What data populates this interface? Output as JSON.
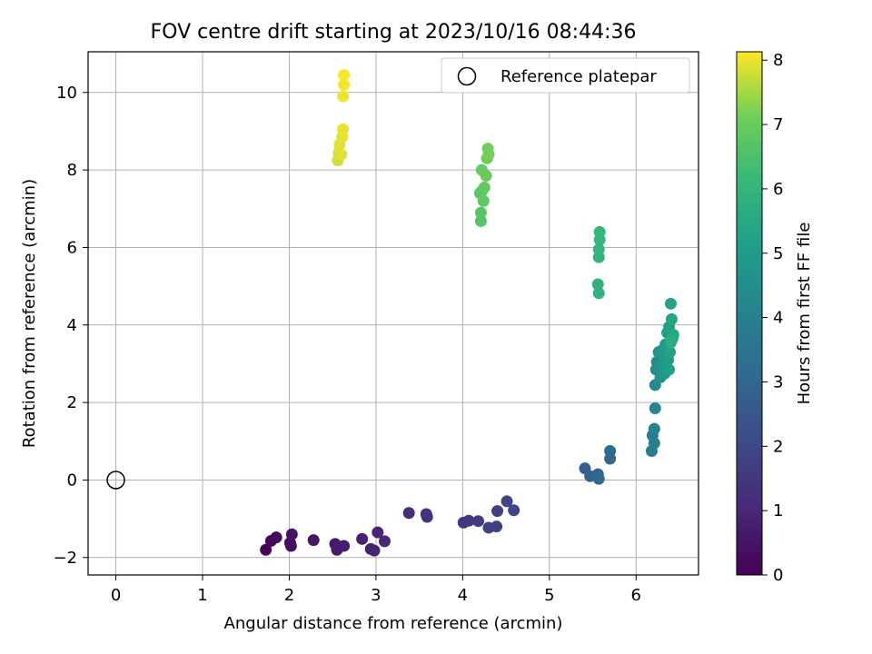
{
  "chart_data": {
    "type": "scatter",
    "title": "FOV centre drift starting at 2023/10/16 08:44:36",
    "xlabel": "Angular distance from reference (arcmin)",
    "ylabel": "Rotation from reference (arcmin)",
    "xlim": [
      -0.32,
      6.72
    ],
    "ylim": [
      -2.45,
      11.05
    ],
    "xticks": [
      0,
      1,
      2,
      3,
      4,
      5,
      6
    ],
    "yticks": [
      -2,
      0,
      2,
      4,
      6,
      8,
      10
    ],
    "grid": true,
    "legend": {
      "location": "upper right",
      "entries": [
        "Reference platepar"
      ]
    },
    "colorbar": {
      "label": "Hours from first FF file",
      "colormap": "viridis",
      "range": [
        0,
        8.13
      ],
      "ticks": [
        0,
        1,
        2,
        3,
        4,
        5,
        6,
        7,
        8
      ]
    },
    "reference_point": {
      "x": 0,
      "y": 0,
      "name": "Reference platepar"
    },
    "points": [
      {
        "x": 1.73,
        "y": -1.8,
        "h": 0.05
      },
      {
        "x": 1.79,
        "y": -1.57,
        "h": 0.15
      },
      {
        "x": 1.85,
        "y": -1.48,
        "h": 0.25
      },
      {
        "x": 2.01,
        "y": -1.62,
        "h": 0.35
      },
      {
        "x": 2.02,
        "y": -1.7,
        "h": 0.4
      },
      {
        "x": 2.03,
        "y": -1.4,
        "h": 0.45
      },
      {
        "x": 2.28,
        "y": -1.55,
        "h": 0.55
      },
      {
        "x": 2.53,
        "y": -1.65,
        "h": 0.6
      },
      {
        "x": 2.55,
        "y": -1.8,
        "h": 0.65
      },
      {
        "x": 2.57,
        "y": -1.72,
        "h": 0.7
      },
      {
        "x": 2.63,
        "y": -1.7,
        "h": 0.75
      },
      {
        "x": 2.84,
        "y": -1.52,
        "h": 0.8
      },
      {
        "x": 2.94,
        "y": -1.78,
        "h": 0.85
      },
      {
        "x": 2.98,
        "y": -1.82,
        "h": 0.9
      },
      {
        "x": 3.02,
        "y": -1.35,
        "h": 0.95
      },
      {
        "x": 3.1,
        "y": -1.58,
        "h": 1.0
      },
      {
        "x": 3.38,
        "y": -0.85,
        "h": 1.15
      },
      {
        "x": 3.58,
        "y": -0.88,
        "h": 1.25
      },
      {
        "x": 3.59,
        "y": -0.95,
        "h": 1.3
      },
      {
        "x": 4.01,
        "y": -1.1,
        "h": 1.45
      },
      {
        "x": 4.07,
        "y": -1.05,
        "h": 1.5
      },
      {
        "x": 4.18,
        "y": -1.06,
        "h": 1.6
      },
      {
        "x": 4.3,
        "y": -1.23,
        "h": 1.7
      },
      {
        "x": 4.39,
        "y": -1.2,
        "h": 1.75
      },
      {
        "x": 4.4,
        "y": -0.8,
        "h": 1.8
      },
      {
        "x": 4.51,
        "y": -0.55,
        "h": 1.9
      },
      {
        "x": 4.59,
        "y": -0.78,
        "h": 2.0
      },
      {
        "x": 5.41,
        "y": 0.3,
        "h": 2.75
      },
      {
        "x": 5.47,
        "y": 0.1,
        "h": 2.85
      },
      {
        "x": 5.56,
        "y": 0.15,
        "h": 2.95
      },
      {
        "x": 5.57,
        "y": 0.03,
        "h": 3.0
      },
      {
        "x": 5.7,
        "y": 0.75,
        "h": 3.05
      },
      {
        "x": 5.7,
        "y": 0.55,
        "h": 3.1
      },
      {
        "x": 6.18,
        "y": 0.75,
        "h": 3.8
      },
      {
        "x": 6.19,
        "y": 1.15,
        "h": 3.9
      },
      {
        "x": 6.21,
        "y": 0.95,
        "h": 4.0
      },
      {
        "x": 6.21,
        "y": 1.32,
        "h": 4.05
      },
      {
        "x": 6.22,
        "y": 1.85,
        "h": 4.2
      },
      {
        "x": 6.22,
        "y": 2.45,
        "h": 4.35
      },
      {
        "x": 6.23,
        "y": 2.85,
        "h": 4.45
      },
      {
        "x": 6.24,
        "y": 3.05,
        "h": 4.55
      },
      {
        "x": 6.26,
        "y": 3.3,
        "h": 4.65
      },
      {
        "x": 6.28,
        "y": 2.65,
        "h": 4.7
      },
      {
        "x": 6.3,
        "y": 3.35,
        "h": 4.75
      },
      {
        "x": 6.31,
        "y": 2.95,
        "h": 4.8
      },
      {
        "x": 6.32,
        "y": 3.2,
        "h": 4.85
      },
      {
        "x": 6.33,
        "y": 2.75,
        "h": 4.9
      },
      {
        "x": 6.34,
        "y": 3.5,
        "h": 4.95
      },
      {
        "x": 6.35,
        "y": 3.4,
        "h": 5.0
      },
      {
        "x": 6.36,
        "y": 3.8,
        "h": 5.05
      },
      {
        "x": 6.37,
        "y": 3.1,
        "h": 5.1
      },
      {
        "x": 6.38,
        "y": 2.85,
        "h": 5.15
      },
      {
        "x": 6.38,
        "y": 3.95,
        "h": 5.2
      },
      {
        "x": 6.39,
        "y": 3.3,
        "h": 5.25
      },
      {
        "x": 6.4,
        "y": 4.55,
        "h": 5.3
      },
      {
        "x": 6.41,
        "y": 4.15,
        "h": 5.35
      },
      {
        "x": 6.42,
        "y": 3.65,
        "h": 5.4
      },
      {
        "x": 6.43,
        "y": 3.75,
        "h": 5.5
      },
      {
        "x": 6.4,
        "y": 3.55,
        "h": 5.7
      },
      {
        "x": 5.57,
        "y": 4.82,
        "h": 5.85
      },
      {
        "x": 5.56,
        "y": 5.05,
        "h": 5.9
      },
      {
        "x": 5.57,
        "y": 5.75,
        "h": 5.95
      },
      {
        "x": 5.57,
        "y": 5.95,
        "h": 6.0
      },
      {
        "x": 5.58,
        "y": 6.2,
        "h": 6.05
      },
      {
        "x": 5.58,
        "y": 6.4,
        "h": 6.1
      },
      {
        "x": 4.21,
        "y": 6.68,
        "h": 6.65
      },
      {
        "x": 4.21,
        "y": 6.9,
        "h": 6.7
      },
      {
        "x": 4.22,
        "y": 7.45,
        "h": 6.75
      },
      {
        "x": 4.2,
        "y": 7.4,
        "h": 6.8
      },
      {
        "x": 4.24,
        "y": 7.2,
        "h": 6.85
      },
      {
        "x": 4.25,
        "y": 7.55,
        "h": 6.9
      },
      {
        "x": 4.22,
        "y": 8.0,
        "h": 6.95
      },
      {
        "x": 4.27,
        "y": 7.85,
        "h": 7.0
      },
      {
        "x": 4.28,
        "y": 8.3,
        "h": 7.05
      },
      {
        "x": 4.29,
        "y": 8.55,
        "h": 7.1
      },
      {
        "x": 4.3,
        "y": 8.4,
        "h": 7.15
      },
      {
        "x": 2.56,
        "y": 8.25,
        "h": 7.8
      },
      {
        "x": 2.57,
        "y": 8.45,
        "h": 7.85
      },
      {
        "x": 2.58,
        "y": 8.65,
        "h": 7.9
      },
      {
        "x": 2.6,
        "y": 8.4,
        "h": 7.92
      },
      {
        "x": 2.61,
        "y": 8.85,
        "h": 7.95
      },
      {
        "x": 2.62,
        "y": 9.05,
        "h": 7.98
      },
      {
        "x": 2.62,
        "y": 9.9,
        "h": 8.02
      },
      {
        "x": 2.63,
        "y": 10.2,
        "h": 8.06
      },
      {
        "x": 2.63,
        "y": 10.45,
        "h": 8.1
      }
    ]
  }
}
